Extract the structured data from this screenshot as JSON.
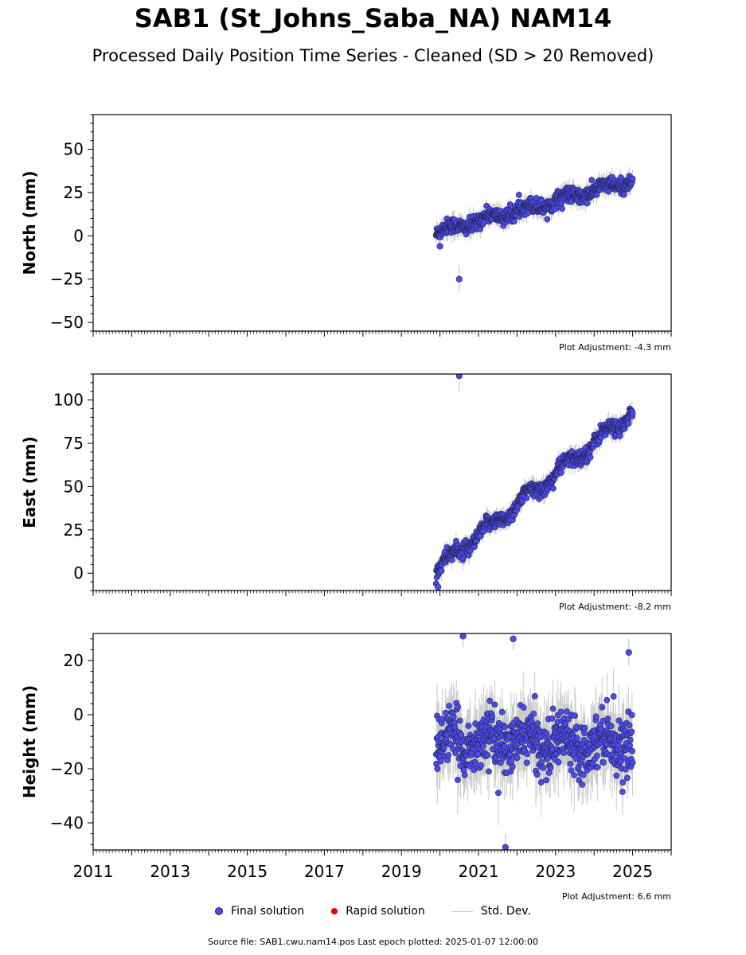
{
  "title": "SAB1 (St_Johns_Saba_NA) NAM14",
  "subtitle": "Processed Daily Position Time Series - Cleaned (SD > 20 Removed)",
  "colors": {
    "final": "#4a4aef",
    "rapid": "#e00000",
    "stddev": "#c8c8c8",
    "edge": "#222244"
  },
  "legend": {
    "final": "Final solution",
    "rapid": "Rapid solution",
    "stddev": "Std. Dev."
  },
  "footer": "Source file: SAB1.cwu.nam14.pos  Last epoch plotted: 2025-01-07 12:00:00",
  "chart_data": [
    {
      "type": "scatter",
      "ylabel": "North (mm)",
      "adjustment": "Plot Adjustment: -4.3 mm",
      "xlim": [
        2011,
        2026
      ],
      "ylim": [
        -55,
        70
      ],
      "yticks": [
        -50,
        -25,
        0,
        25,
        50
      ],
      "trend": {
        "start": [
          2019.9,
          2
        ],
        "end": [
          2025.0,
          32
        ],
        "scatter": 4,
        "sd": 4
      },
      "outliers": [
        {
          "x": 2020.5,
          "y": -25,
          "sd": 8
        },
        {
          "x": 2020.0,
          "y": -6,
          "sd": 3
        }
      ]
    },
    {
      "type": "scatter",
      "ylabel": "East (mm)",
      "adjustment": "Plot Adjustment: -8.2 mm",
      "xlim": [
        2011,
        2026
      ],
      "ylim": [
        -10,
        115
      ],
      "yticks": [
        0,
        25,
        50,
        75,
        100
      ],
      "trend": {
        "start": [
          2019.9,
          2
        ],
        "end": [
          2025.0,
          93
        ],
        "scatter": 4,
        "sd": 4
      },
      "outliers": [
        {
          "x": 2020.5,
          "y": 114,
          "sd": 9
        },
        {
          "x": 2019.95,
          "y": -8,
          "sd": 3
        }
      ]
    },
    {
      "type": "scatter",
      "ylabel": "Height (mm)",
      "adjustment": "Plot Adjustment: 6.6 mm",
      "xlim": [
        2011,
        2026
      ],
      "ylim": [
        -50,
        30
      ],
      "yticks": [
        -40,
        -20,
        0,
        20
      ],
      "xticks": [
        2011,
        2013,
        2015,
        2017,
        2019,
        2021,
        2023,
        2025
      ],
      "trend": {
        "start": [
          2019.9,
          -10
        ],
        "end": [
          2025.0,
          -10
        ],
        "scatter": 9,
        "sd": 9
      },
      "outliers": [
        {
          "x": 2020.6,
          "y": 29,
          "sd": 4
        },
        {
          "x": 2021.7,
          "y": -49,
          "sd": 5
        },
        {
          "x": 2021.9,
          "y": 28,
          "sd": 4
        },
        {
          "x": 2024.9,
          "y": 23,
          "sd": 5
        }
      ]
    }
  ]
}
